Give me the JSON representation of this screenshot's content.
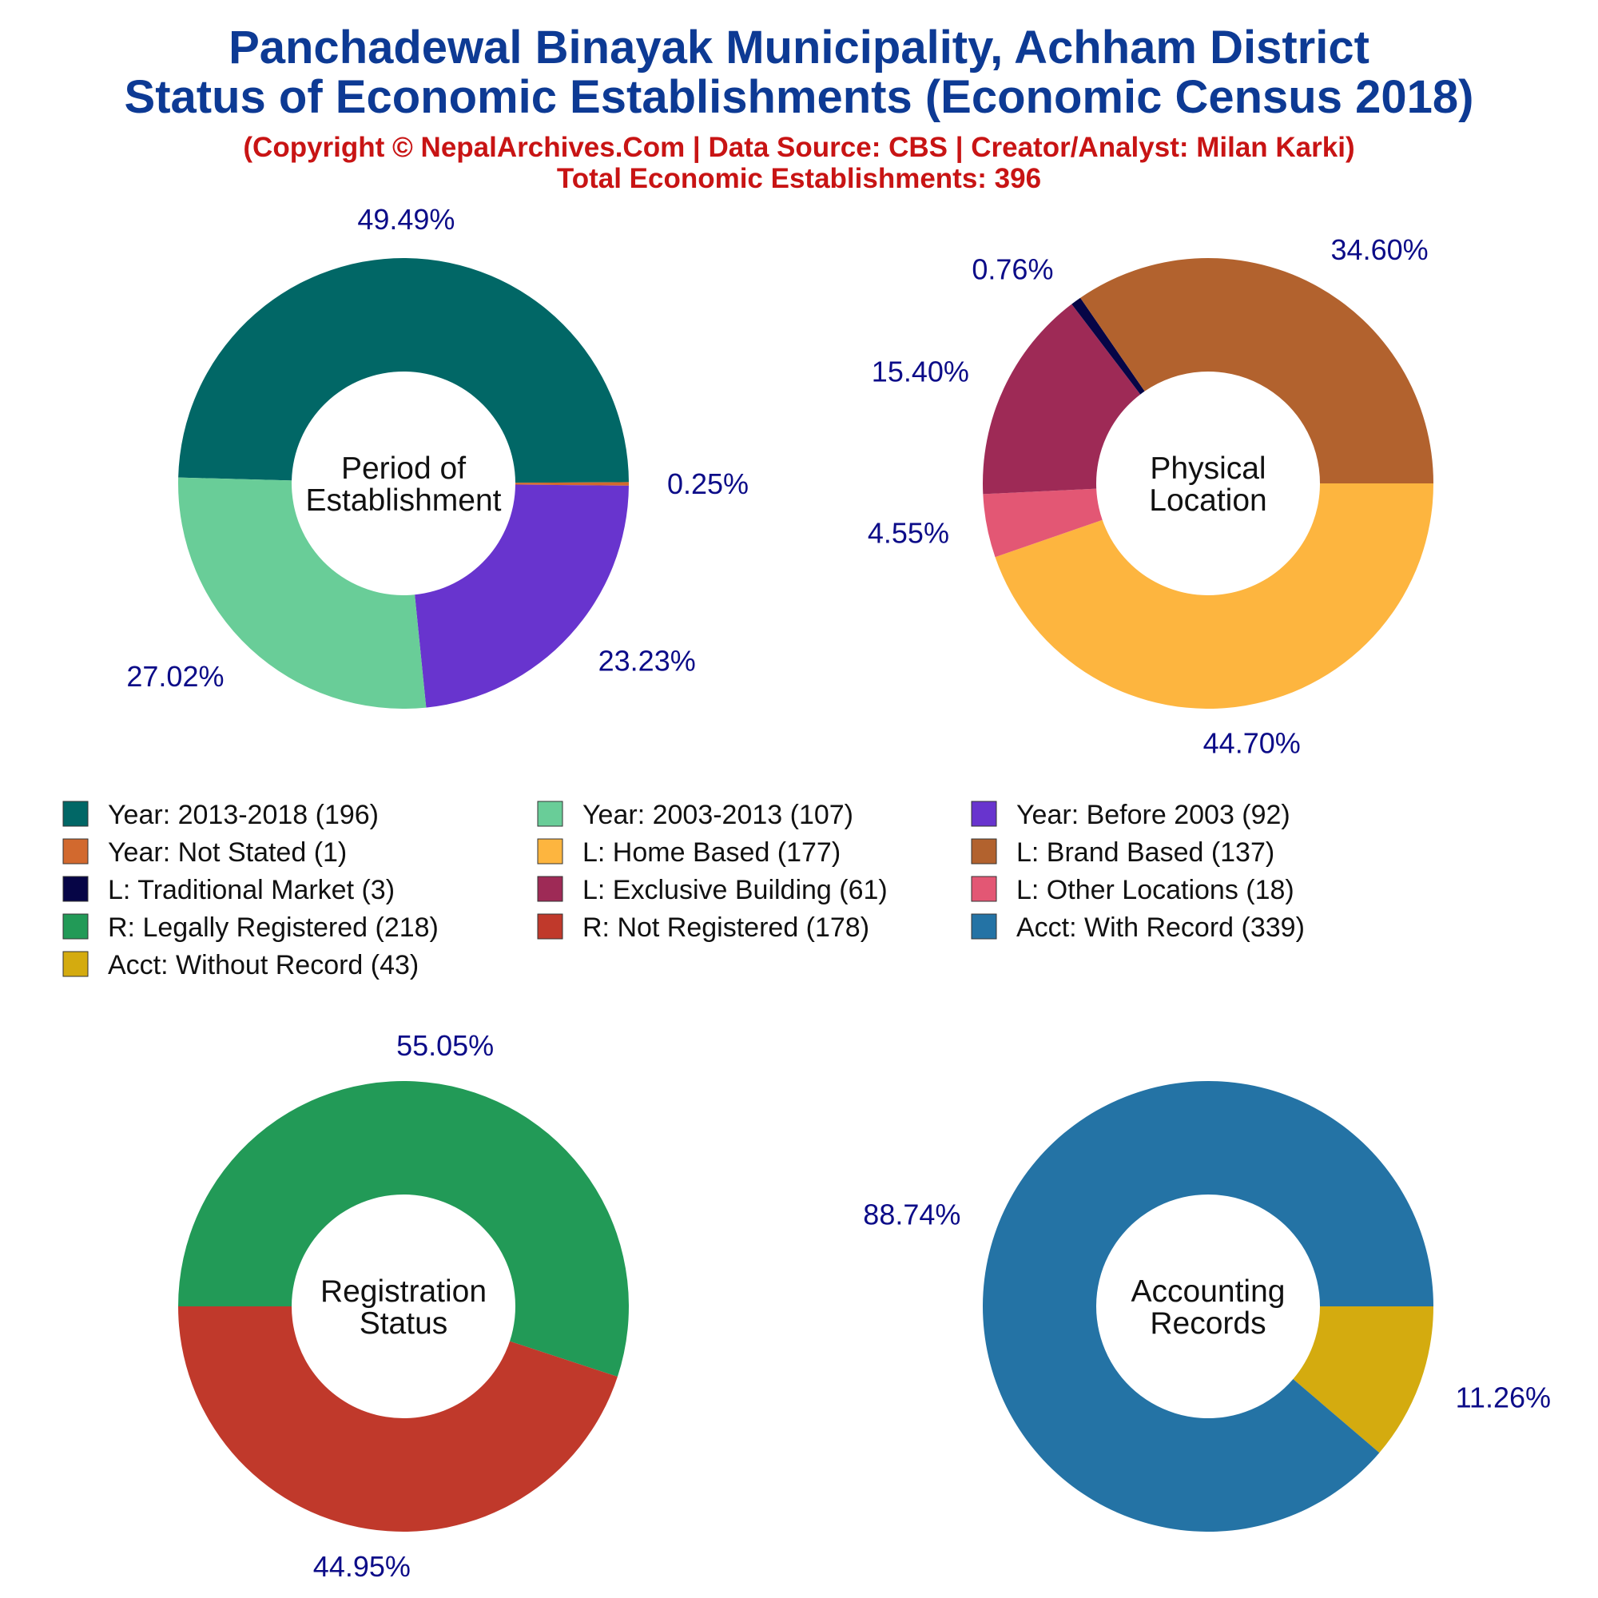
{
  "header": {
    "title_line1": "Panchadewal Binayak Municipality, Achham District",
    "title_line2": "Status of Economic Establishments (Economic Census 2018)",
    "copyright": "(Copyright © NepalArchives.Com | Data Source: CBS | Creator/Analyst: Milan Karki)",
    "total": "Total Economic Establishments: 396"
  },
  "chart_data": [
    {
      "type": "pie",
      "center_label": [
        "Period of",
        "Establishment"
      ],
      "slices": [
        {
          "label": "Year: 2013-2018",
          "value": 196,
          "pct": "49.49%",
          "color": "#016766"
        },
        {
          "label": "Year: Not Stated",
          "value": 1,
          "pct": "0.25%",
          "color": "#d2692e"
        },
        {
          "label": "Year: Before 2003",
          "value": 92,
          "pct": "23.23%",
          "color": "#6834ce"
        },
        {
          "label": "Year: 2003-2013",
          "value": 107,
          "pct": "27.02%",
          "color": "#69cd98"
        }
      ]
    },
    {
      "type": "pie",
      "center_label": [
        "Physical",
        "Location"
      ],
      "slices": [
        {
          "label": "L: Home Based",
          "value": 177,
          "pct": "44.70%",
          "color": "#fdb53f"
        },
        {
          "label": "L: Other Locations",
          "value": 18,
          "pct": "4.55%",
          "color": "#e35774"
        },
        {
          "label": "L: Exclusive Building",
          "value": 61,
          "pct": "15.40%",
          "color": "#9e2a56"
        },
        {
          "label": "L: Traditional Market",
          "value": 3,
          "pct": "0.76%",
          "color": "#060546"
        },
        {
          "label": "L: Brand Based",
          "value": 137,
          "pct": "34.60%",
          "color": "#b2622e"
        }
      ]
    },
    {
      "type": "pie",
      "center_label": [
        "Registration",
        "Status"
      ],
      "slices": [
        {
          "label": "R: Legally Registered",
          "value": 218,
          "pct": "55.05%",
          "color": "#229a57"
        },
        {
          "label": "R: Not Registered",
          "value": 178,
          "pct": "44.95%",
          "color": "#c0392b"
        }
      ]
    },
    {
      "type": "pie",
      "center_label": [
        "Accounting",
        "Records"
      ],
      "slices": [
        {
          "label": "Acct: Without Record",
          "value": 43,
          "pct": "11.26%",
          "color": "#d4ab0f"
        },
        {
          "label": "Acct: With Record",
          "value": 339,
          "pct": "88.74%",
          "color": "#2473a5"
        }
      ]
    }
  ],
  "legend": {
    "items": [
      {
        "text": "Year: 2013-2018 (196)",
        "color": "#016766"
      },
      {
        "text": "Year: 2003-2013 (107)",
        "color": "#69cd98"
      },
      {
        "text": "Year: Before 2003 (92)",
        "color": "#6834ce"
      },
      {
        "text": "Year: Not Stated (1)",
        "color": "#d2692e"
      },
      {
        "text": "L: Home Based (177)",
        "color": "#fdb53f"
      },
      {
        "text": "L: Brand Based (137)",
        "color": "#b2622e"
      },
      {
        "text": "L: Traditional Market (3)",
        "color": "#060546"
      },
      {
        "text": "L: Exclusive Building (61)",
        "color": "#9e2a56"
      },
      {
        "text": "L: Other Locations (18)",
        "color": "#e35774"
      },
      {
        "text": "R: Legally Registered (218)",
        "color": "#229a57"
      },
      {
        "text": "R: Not Registered (178)",
        "color": "#c0392b"
      },
      {
        "text": "Acct: With Record (339)",
        "color": "#2473a5"
      },
      {
        "text": "Acct: Without Record (43)",
        "color": "#d4ab0f"
      }
    ]
  }
}
